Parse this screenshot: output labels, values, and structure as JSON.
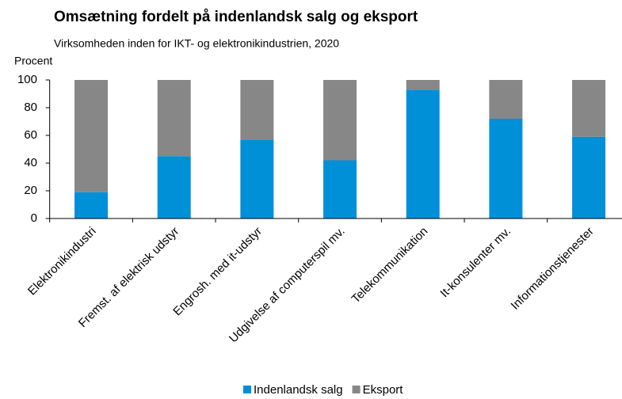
{
  "chart_data": {
    "type": "stacked_bar",
    "title": "Omsætning fordelt på indenlandsk salg og eksport",
    "subtitle": "Virksomheden inden for IKT- og elektronikindustrien, 2020",
    "y_axis_label": "Procent",
    "categories": [
      "Elektronikindustri",
      "Fremst. af elektrisk udstyr",
      "Engrosh. med it-udstyr",
      "Udgivelse af computerspil mv.",
      "Telekommunikation",
      "It-konsulenter mv.",
      "Informationstjenester"
    ],
    "series": [
      {
        "name": "Indenlandsk salg",
        "color": "#0090d8",
        "values": [
          19,
          45,
          57,
          42,
          93,
          72,
          59
        ]
      },
      {
        "name": "Eksport",
        "color": "#878787",
        "values": [
          81,
          55,
          43,
          58,
          7,
          28,
          41
        ]
      }
    ],
    "ylim": [
      0,
      100
    ],
    "yticks": [
      0,
      20,
      40,
      60,
      80,
      100
    ]
  }
}
